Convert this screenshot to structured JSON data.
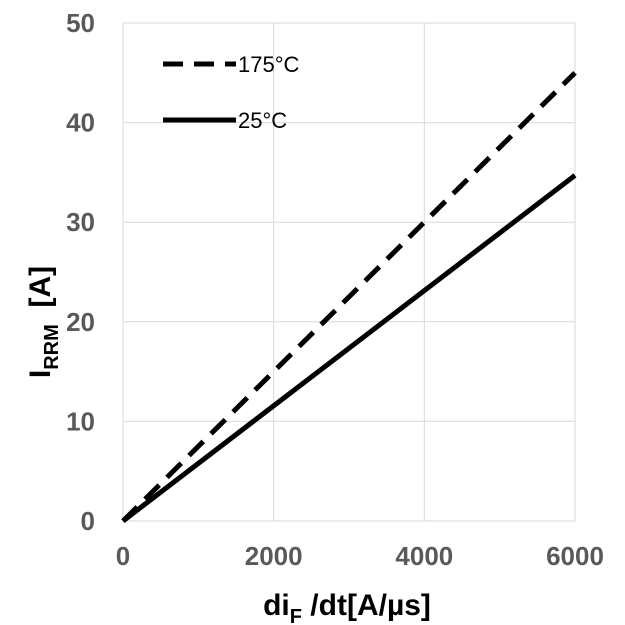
{
  "chart_data": {
    "type": "line",
    "xlabel": {
      "main": "di",
      "sub": "F",
      "rest": " /dt[A/µs]"
    },
    "ylabel": {
      "main": "I",
      "sub": "RRM",
      "rest": "  [A]"
    },
    "xlim": [
      0,
      6000
    ],
    "ylim": [
      0,
      50
    ],
    "xticks": [
      0,
      2000,
      4000,
      6000
    ],
    "yticks": [
      0,
      10,
      20,
      30,
      40,
      50
    ],
    "x_tick_labels": [
      "0",
      "2000",
      "4000",
      "6000"
    ],
    "y_tick_labels": [
      "0",
      "10",
      "20",
      "30",
      "40",
      "50"
    ],
    "grid": true,
    "legend_position": "top-left",
    "series": [
      {
        "name": "175°C",
        "style": "dashed",
        "color": "#000000",
        "x": [
          0,
          6000
        ],
        "y": [
          0,
          45
        ]
      },
      {
        "name": "25°C",
        "style": "solid",
        "color": "#000000",
        "x": [
          0,
          6000
        ],
        "y": [
          0,
          34.7
        ]
      }
    ]
  }
}
